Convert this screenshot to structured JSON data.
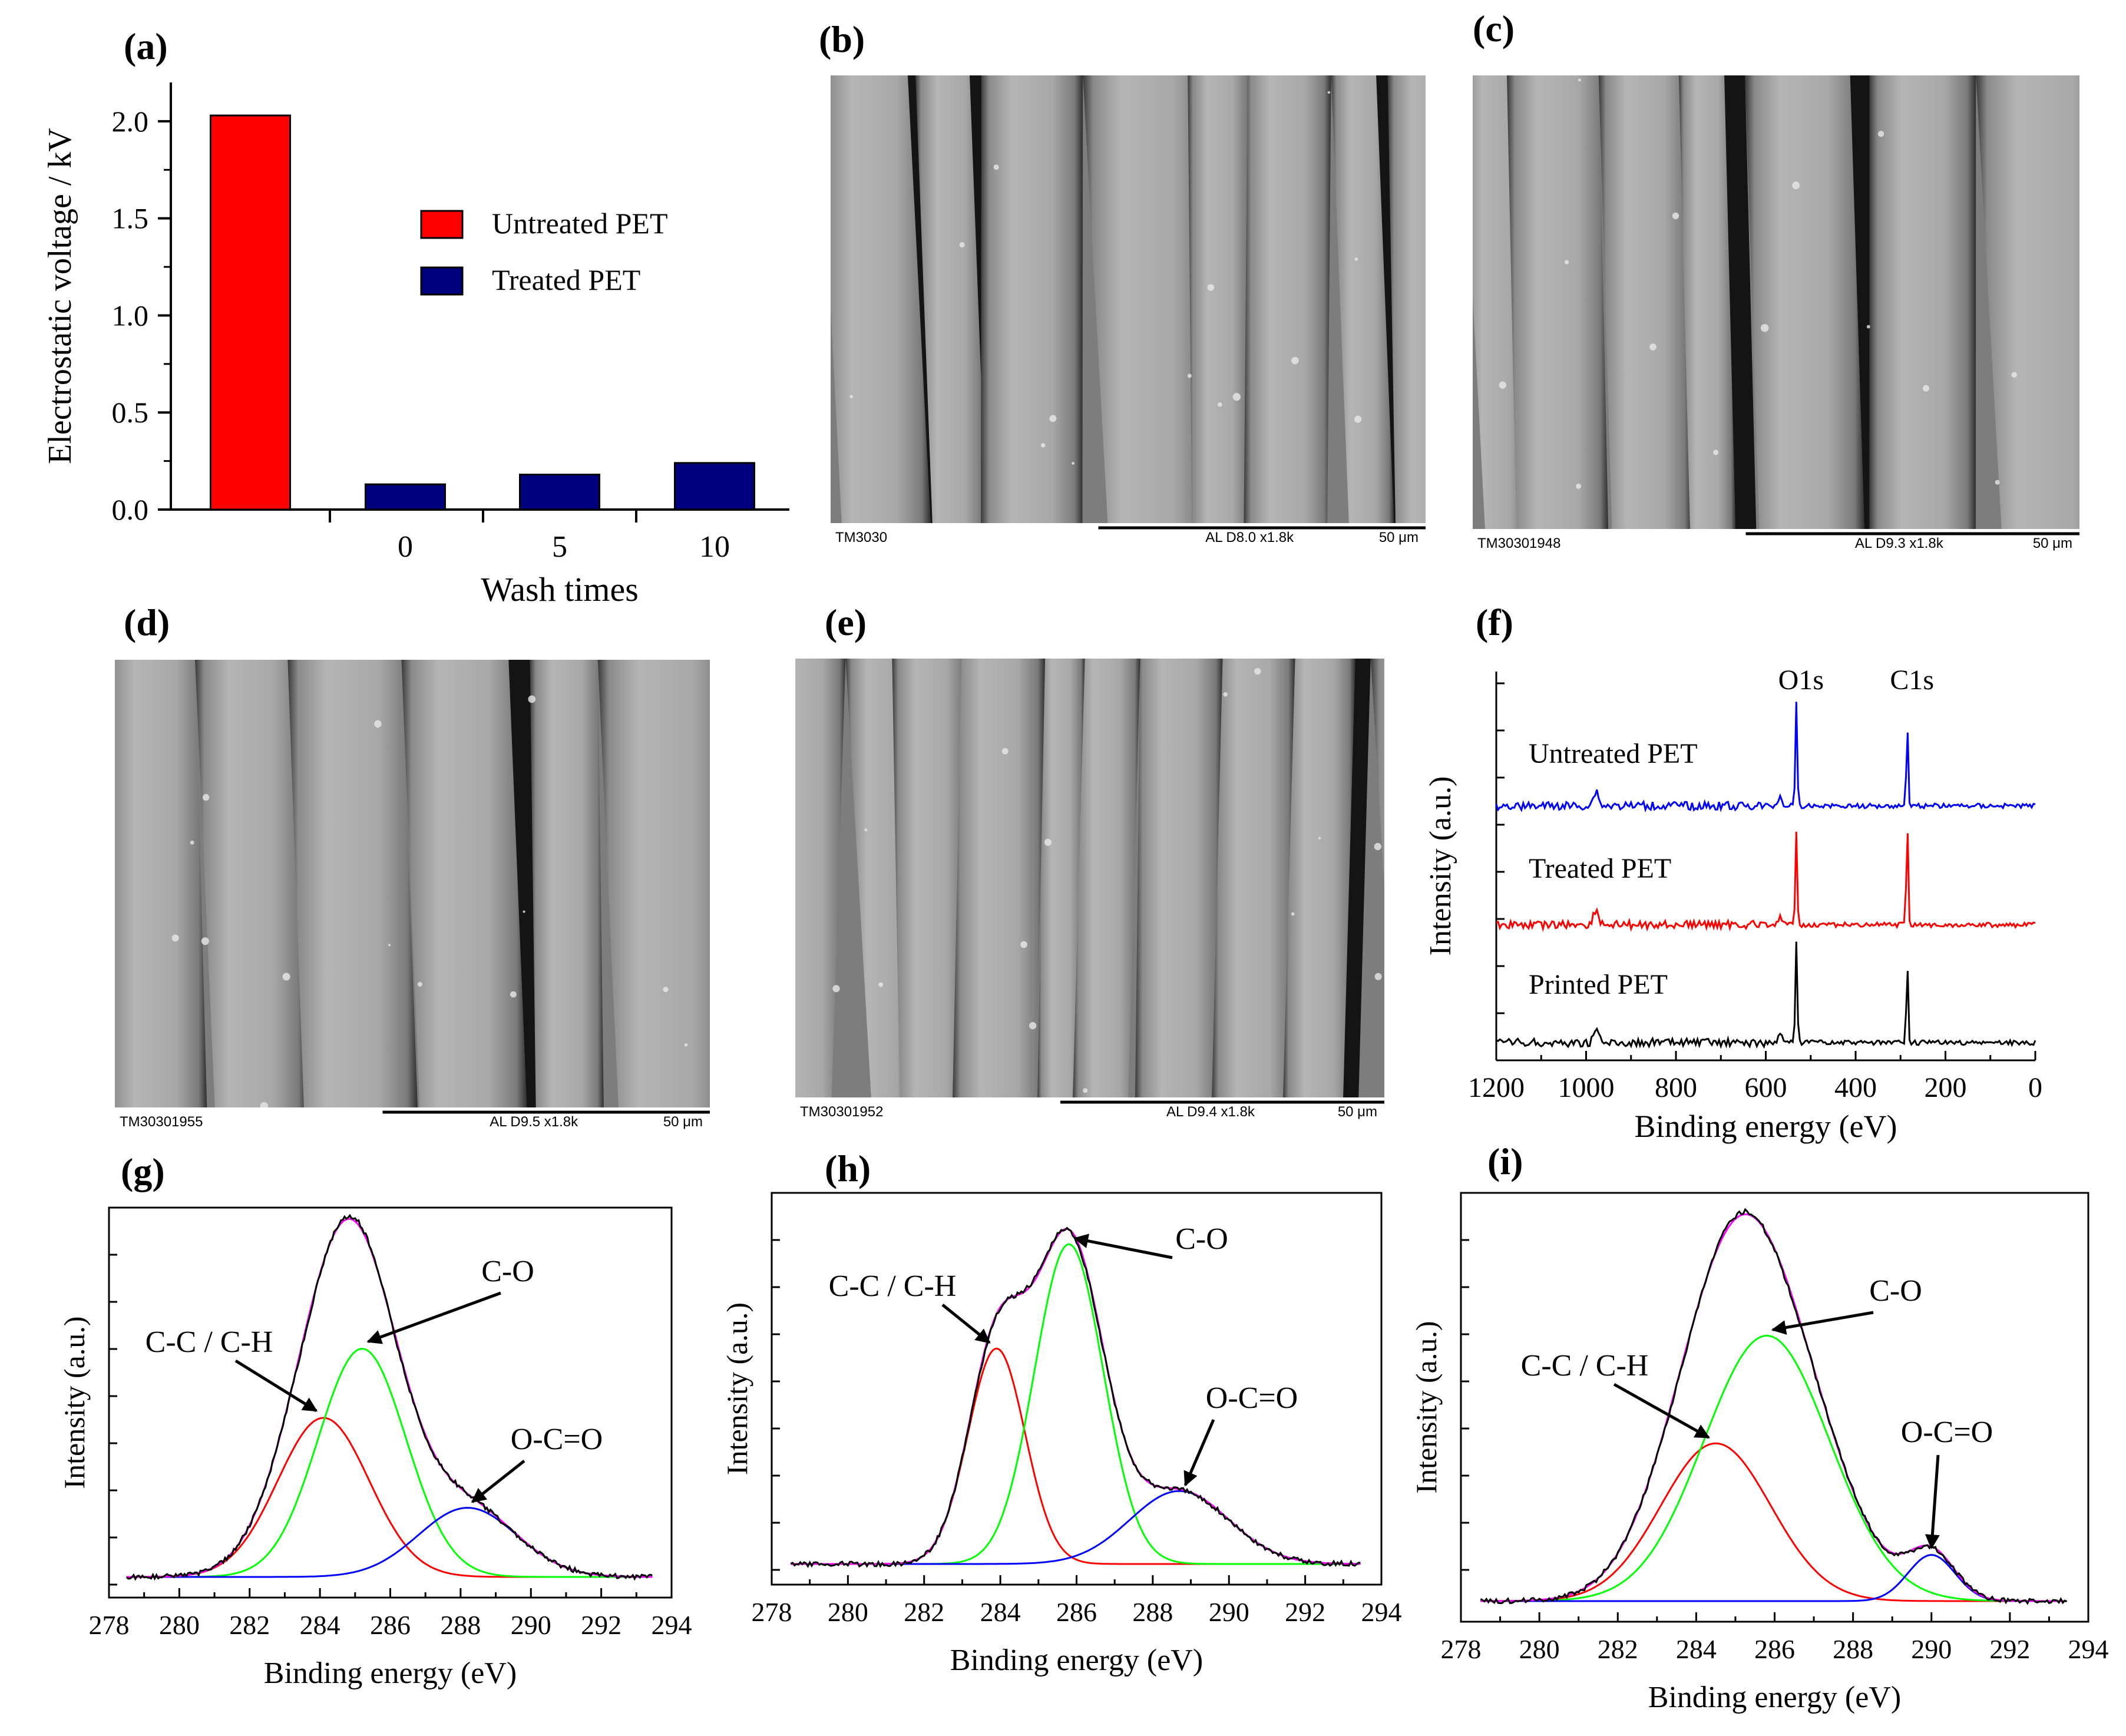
{
  "chart_data": [
    {
      "panel": "(a)",
      "type": "bar",
      "ylabel": "Electrostatic voltage / kV",
      "xlabel": "Wash times",
      "ylim": [
        0,
        2.2
      ],
      "yticks": [
        "0.0",
        "0.5",
        "1.0",
        "1.5",
        "2.0"
      ],
      "categories": [
        "",
        "0",
        "5",
        "10"
      ],
      "bars": [
        {
          "category": "",
          "series": "Untreated PET",
          "value": 2.03,
          "color": "#ff0000"
        },
        {
          "category": "0",
          "series": "Treated PET",
          "value": 0.13,
          "color": "#00007f"
        },
        {
          "category": "5",
          "series": "Treated PET",
          "value": 0.18,
          "color": "#00007f"
        },
        {
          "category": "10",
          "series": "Treated PET",
          "value": 0.24,
          "color": "#00007f"
        }
      ],
      "legend": [
        {
          "label": "Untreated PET",
          "color": "#ff0000"
        },
        {
          "label": "Treated PET",
          "color": "#00007f"
        }
      ]
    },
    {
      "panel": "(f)",
      "type": "line",
      "xlabel": "Binding energy (eV)",
      "ylabel": "Intensity (a.u.)",
      "xlim": [
        1200,
        0
      ],
      "xticks": [
        "1200",
        "1000",
        "800",
        "600",
        "400",
        "200",
        "0"
      ],
      "peak_labels": [
        {
          "label": "O1s",
          "x": 532
        },
        {
          "label": "C1s",
          "x": 285
        }
      ],
      "series": [
        {
          "name": "Untreated PET",
          "color": "#0000ff",
          "offset": 2,
          "o1s_height": 0.95,
          "c1s_height": 0.72
        },
        {
          "name": "Treated PET",
          "color": "#ff0000",
          "offset": 1,
          "o1s_height": 0.82,
          "c1s_height": 0.9
        },
        {
          "name": "Printed PET",
          "color": "#000000",
          "offset": 0,
          "o1s_height": 0.9,
          "c1s_height": 0.7
        }
      ]
    },
    {
      "panel": "(g)",
      "type": "line",
      "xlabel": "Binding energy (eV)",
      "ylabel": "Intensity (a.u.)",
      "xlim": [
        278,
        294
      ],
      "xticks": [
        "278",
        "280",
        "282",
        "284",
        "286",
        "288",
        "290",
        "292",
        "294"
      ],
      "components": [
        {
          "name": "C-C / C-H",
          "color": "#ff0000",
          "center": 284.1,
          "amplitude": 0.46,
          "sigma": 1.3
        },
        {
          "name": "C-O",
          "color": "#00ff00",
          "center": 285.2,
          "amplitude": 0.66,
          "sigma": 1.25
        },
        {
          "name": "O-C=O",
          "color": "#0000ff",
          "center": 288.2,
          "amplitude": 0.2,
          "sigma": 1.4
        }
      ],
      "annotations": [
        {
          "label": "C-C / C-H",
          "x": 284.1
        },
        {
          "label": "C-O",
          "x": 285.2
        },
        {
          "label": "O-C=O",
          "x": 288.2
        }
      ]
    },
    {
      "panel": "(h)",
      "type": "line",
      "xlabel": "Binding energy (eV)",
      "ylabel": "Intensity (a.u.)",
      "xlim": [
        278,
        294
      ],
      "xticks": [
        "278",
        "280",
        "282",
        "284",
        "286",
        "288",
        "290",
        "292",
        "294"
      ],
      "components": [
        {
          "name": "C-C / C-H",
          "color": "#ff0000",
          "center": 283.9,
          "amplitude": 0.62,
          "sigma": 0.75
        },
        {
          "name": "C-O",
          "color": "#00ff00",
          "center": 285.8,
          "amplitude": 0.92,
          "sigma": 0.9
        },
        {
          "name": "O-C=O",
          "color": "#0000ff",
          "center": 288.7,
          "amplitude": 0.21,
          "sigma": 1.3
        }
      ],
      "annotations": [
        {
          "label": "C-C / C-H",
          "x": 283.9
        },
        {
          "label": "C-O",
          "x": 285.8
        },
        {
          "label": "O-C=O",
          "x": 288.7
        }
      ]
    },
    {
      "panel": "(i)",
      "type": "line",
      "xlabel": "Binding energy (eV)",
      "ylabel": "Intensity (a.u.)",
      "xlim": [
        278,
        294
      ],
      "xticks": [
        "278",
        "280",
        "282",
        "284",
        "286",
        "288",
        "290",
        "292",
        "294"
      ],
      "components": [
        {
          "name": "C-C / C-H",
          "color": "#ff0000",
          "center": 284.5,
          "amplitude": 0.41,
          "sigma": 1.4
        },
        {
          "name": "C-O",
          "color": "#00ff00",
          "center": 285.8,
          "amplitude": 0.69,
          "sigma": 1.6
        },
        {
          "name": "O-C=O",
          "color": "#0000ff",
          "center": 290.0,
          "amplitude": 0.12,
          "sigma": 0.6
        }
      ],
      "annotations": [
        {
          "label": "C-C / C-H",
          "x": 284.5
        },
        {
          "label": "C-O",
          "x": 285.8
        },
        {
          "label": "O-C=O",
          "x": 290.0
        }
      ]
    }
  ],
  "sem_panels": [
    {
      "panel": "(b)",
      "id": "TM3030",
      "info": "AL   D8.0   x1.8k",
      "scale": "50 μm"
    },
    {
      "panel": "(c)",
      "id": "TM30301948",
      "info": "AL   D9.3   x1.8k",
      "scale": "50 μm"
    },
    {
      "panel": "(d)",
      "id": "TM30301955",
      "info": "AL   D9.5   x1.8k",
      "scale": "50 μm"
    },
    {
      "panel": "(e)",
      "id": "TM30301952",
      "info": "AL   D9.4   x1.8k",
      "scale": "50 μm"
    }
  ]
}
